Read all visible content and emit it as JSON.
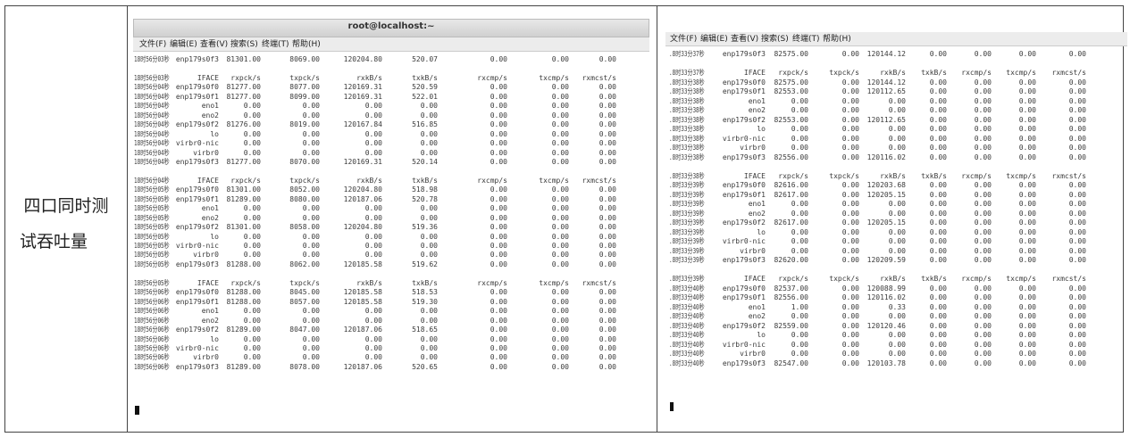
{
  "label": {
    "lines": [
      "四口同时测",
      "试吞吐量"
    ]
  },
  "terminals": [
    {
      "title": "root@localhost:~",
      "menu": [
        "文件(F)",
        "编辑(E)",
        "查看(V)",
        "搜索(S)",
        "终端(T)",
        "帮助(H)"
      ],
      "lines": [
        [
          "18时56分03秒",
          "enp179s0f3",
          "81301.00",
          "8069.00",
          "120204.80",
          "520.07",
          "0.00",
          "0.00",
          "0.00"
        ],
        null,
        [
          "18时56分03秒",
          "IFACE",
          "rxpck/s",
          "txpck/s",
          "rxkB/s",
          "txkB/s",
          "rxcmp/s",
          "txcmp/s",
          "rxmcst/s"
        ],
        [
          "18时56分04秒",
          "enp179s0f0",
          "81277.00",
          "8077.00",
          "120169.31",
          "520.59",
          "0.00",
          "0.00",
          "0.00"
        ],
        [
          "18时56分04秒",
          "enp179s0f1",
          "81277.00",
          "8099.00",
          "120169.31",
          "522.01",
          "0.00",
          "0.00",
          "0.00"
        ],
        [
          "18时56分04秒",
          "eno1",
          "0.00",
          "0.00",
          "0.00",
          "0.00",
          "0.00",
          "0.00",
          "0.00"
        ],
        [
          "18时56分04秒",
          "eno2",
          "0.00",
          "0.00",
          "0.00",
          "0.00",
          "0.00",
          "0.00",
          "0.00"
        ],
        [
          "18时56分04秒",
          "enp179s0f2",
          "81276.00",
          "8019.00",
          "120167.84",
          "516.85",
          "0.00",
          "0.00",
          "0.00"
        ],
        [
          "18时56分04秒",
          "lo",
          "0.00",
          "0.00",
          "0.00",
          "0.00",
          "0.00",
          "0.00",
          "0.00"
        ],
        [
          "18时56分04秒",
          "virbr0-nic",
          "0.00",
          "0.00",
          "0.00",
          "0.00",
          "0.00",
          "0.00",
          "0.00"
        ],
        [
          "18时56分04秒",
          "virbr0",
          "0.00",
          "0.00",
          "0.00",
          "0.00",
          "0.00",
          "0.00",
          "0.00"
        ],
        [
          "18时56分04秒",
          "enp179s0f3",
          "81277.00",
          "8070.00",
          "120169.31",
          "520.14",
          "0.00",
          "0.00",
          "0.00"
        ],
        null,
        [
          "18时56分04秒",
          "IFACE",
          "rxpck/s",
          "txpck/s",
          "rxkB/s",
          "txkB/s",
          "rxcmp/s",
          "txcmp/s",
          "rxmcst/s"
        ],
        [
          "18时56分05秒",
          "enp179s0f0",
          "81301.00",
          "8052.00",
          "120204.80",
          "518.98",
          "0.00",
          "0.00",
          "0.00"
        ],
        [
          "18时56分05秒",
          "enp179s0f1",
          "81289.00",
          "8080.00",
          "120187.06",
          "520.78",
          "0.00",
          "0.00",
          "0.00"
        ],
        [
          "18时56分05秒",
          "eno1",
          "0.00",
          "0.00",
          "0.00",
          "0.00",
          "0.00",
          "0.00",
          "0.00"
        ],
        [
          "18时56分05秒",
          "eno2",
          "0.00",
          "0.00",
          "0.00",
          "0.00",
          "0.00",
          "0.00",
          "0.00"
        ],
        [
          "18时56分05秒",
          "enp179s0f2",
          "81301.00",
          "8058.00",
          "120204.80",
          "519.36",
          "0.00",
          "0.00",
          "0.00"
        ],
        [
          "18时56分05秒",
          "lo",
          "0.00",
          "0.00",
          "0.00",
          "0.00",
          "0.00",
          "0.00",
          "0.00"
        ],
        [
          "18时56分05秒",
          "virbr0-nic",
          "0.00",
          "0.00",
          "0.00",
          "0.00",
          "0.00",
          "0.00",
          "0.00"
        ],
        [
          "18时56分05秒",
          "virbr0",
          "0.00",
          "0.00",
          "0.00",
          "0.00",
          "0.00",
          "0.00",
          "0.00"
        ],
        [
          "18时56分05秒",
          "enp179s0f3",
          "81288.00",
          "8062.00",
          "120185.58",
          "519.62",
          "0.00",
          "0.00",
          "0.00"
        ],
        null,
        [
          "18时56分05秒",
          "IFACE",
          "rxpck/s",
          "txpck/s",
          "rxkB/s",
          "txkB/s",
          "rxcmp/s",
          "txcmp/s",
          "rxmcst/s"
        ],
        [
          "18时56分06秒",
          "enp179s0f0",
          "81288.00",
          "8045.00",
          "120185.58",
          "518.53",
          "0.00",
          "0.00",
          "0.00"
        ],
        [
          "18时56分06秒",
          "enp179s0f1",
          "81288.00",
          "8057.00",
          "120185.58",
          "519.30",
          "0.00",
          "0.00",
          "0.00"
        ],
        [
          "18时56分06秒",
          "eno1",
          "0.00",
          "0.00",
          "0.00",
          "0.00",
          "0.00",
          "0.00",
          "0.00"
        ],
        [
          "18时56分06秒",
          "eno2",
          "0.00",
          "0.00",
          "0.00",
          "0.00",
          "0.00",
          "0.00",
          "0.00"
        ],
        [
          "18时56分06秒",
          "enp179s0f2",
          "81289.00",
          "8047.00",
          "120187.06",
          "518.65",
          "0.00",
          "0.00",
          "0.00"
        ],
        [
          "18时56分06秒",
          "lo",
          "0.00",
          "0.00",
          "0.00",
          "0.00",
          "0.00",
          "0.00",
          "0.00"
        ],
        [
          "18时56分06秒",
          "virbr0-nic",
          "0.00",
          "0.00",
          "0.00",
          "0.00",
          "0.00",
          "0.00",
          "0.00"
        ],
        [
          "18时56分06秒",
          "virbr0",
          "0.00",
          "0.00",
          "0.00",
          "0.00",
          "0.00",
          "0.00",
          "0.00"
        ],
        [
          "18时56分06秒",
          "enp179s0f3",
          "81289.00",
          "8078.00",
          "120187.06",
          "520.65",
          "0.00",
          "0.00",
          "0.00"
        ]
      ]
    },
    {
      "menu": [
        "文件(F)",
        "编辑(E)",
        "查看(V)",
        "搜索(S)",
        "终端(T)",
        "帮助(H)"
      ],
      "lines": [
        [
          ".8时33分37秒",
          "enp179s0f3",
          "82575.00",
          "0.00",
          "120144.12",
          "0.00",
          "0.00",
          "0.00",
          "0.00"
        ],
        null,
        [
          ".8时33分37秒",
          "IFACE",
          "rxpck/s",
          "txpck/s",
          "rxkB/s",
          "txkB/s",
          "rxcmp/s",
          "txcmp/s",
          "rxmcst/s"
        ],
        [
          ".8时33分38秒",
          "enp179s0f0",
          "82575.00",
          "0.00",
          "120144.12",
          "0.00",
          "0.00",
          "0.00",
          "0.00"
        ],
        [
          ".8时33分38秒",
          "enp179s0f1",
          "82553.00",
          "0.00",
          "120112.65",
          "0.00",
          "0.00",
          "0.00",
          "0.00"
        ],
        [
          ".8时33分38秒",
          "eno1",
          "0.00",
          "0.00",
          "0.00",
          "0.00",
          "0.00",
          "0.00",
          "0.00"
        ],
        [
          ".8时33分38秒",
          "eno2",
          "0.00",
          "0.00",
          "0.00",
          "0.00",
          "0.00",
          "0.00",
          "0.00"
        ],
        [
          ".8时33分38秒",
          "enp179s0f2",
          "82553.00",
          "0.00",
          "120112.65",
          "0.00",
          "0.00",
          "0.00",
          "0.00"
        ],
        [
          ".8时33分38秒",
          "lo",
          "0.00",
          "0.00",
          "0.00",
          "0.00",
          "0.00",
          "0.00",
          "0.00"
        ],
        [
          ".8时33分38秒",
          "virbr0-nic",
          "0.00",
          "0.00",
          "0.00",
          "0.00",
          "0.00",
          "0.00",
          "0.00"
        ],
        [
          ".8时33分38秒",
          "virbr0",
          "0.00",
          "0.00",
          "0.00",
          "0.00",
          "0.00",
          "0.00",
          "0.00"
        ],
        [
          ".8时33分38秒",
          "enp179s0f3",
          "82556.00",
          "0.00",
          "120116.02",
          "0.00",
          "0.00",
          "0.00",
          "0.00"
        ],
        null,
        [
          ".8时33分38秒",
          "IFACE",
          "rxpck/s",
          "txpck/s",
          "rxkB/s",
          "txkB/s",
          "rxcmp/s",
          "txcmp/s",
          "rxmcst/s"
        ],
        [
          ".8时33分39秒",
          "enp179s0f0",
          "82616.00",
          "0.00",
          "120203.68",
          "0.00",
          "0.00",
          "0.00",
          "0.00"
        ],
        [
          ".8时33分39秒",
          "enp179s0f1",
          "82617.00",
          "0.00",
          "120205.15",
          "0.00",
          "0.00",
          "0.00",
          "0.00"
        ],
        [
          ".8时33分39秒",
          "eno1",
          "0.00",
          "0.00",
          "0.00",
          "0.00",
          "0.00",
          "0.00",
          "0.00"
        ],
        [
          ".8时33分39秒",
          "eno2",
          "0.00",
          "0.00",
          "0.00",
          "0.00",
          "0.00",
          "0.00",
          "0.00"
        ],
        [
          ".8时33分39秒",
          "enp179s0f2",
          "82617.00",
          "0.00",
          "120205.15",
          "0.00",
          "0.00",
          "0.00",
          "0.00"
        ],
        [
          ".8时33分39秒",
          "lo",
          "0.00",
          "0.00",
          "0.00",
          "0.00",
          "0.00",
          "0.00",
          "0.00"
        ],
        [
          ".8时33分39秒",
          "virbr0-nic",
          "0.00",
          "0.00",
          "0.00",
          "0.00",
          "0.00",
          "0.00",
          "0.00"
        ],
        [
          ".8时33分39秒",
          "virbr0",
          "0.00",
          "0.00",
          "0.00",
          "0.00",
          "0.00",
          "0.00",
          "0.00"
        ],
        [
          ".8时33分39秒",
          "enp179s0f3",
          "82620.00",
          "0.00",
          "120209.59",
          "0.00",
          "0.00",
          "0.00",
          "0.00"
        ],
        null,
        [
          ".8时33分39秒",
          "IFACE",
          "rxpck/s",
          "txpck/s",
          "rxkB/s",
          "txkB/s",
          "rxcmp/s",
          "txcmp/s",
          "rxmcst/s"
        ],
        [
          ".8时33分40秒",
          "enp179s0f0",
          "82537.00",
          "0.00",
          "120088.99",
          "0.00",
          "0.00",
          "0.00",
          "0.00"
        ],
        [
          ".8时33分40秒",
          "enp179s0f1",
          "82556.00",
          "0.00",
          "120116.02",
          "0.00",
          "0.00",
          "0.00",
          "0.00"
        ],
        [
          ".8时33分40秒",
          "eno1",
          "1.00",
          "0.00",
          "0.33",
          "0.00",
          "0.00",
          "0.00",
          "0.00"
        ],
        [
          ".8时33分40秒",
          "eno2",
          "0.00",
          "0.00",
          "0.00",
          "0.00",
          "0.00",
          "0.00",
          "0.00"
        ],
        [
          ".8时33分40秒",
          "enp179s0f2",
          "82559.00",
          "0.00",
          "120120.46",
          "0.00",
          "0.00",
          "0.00",
          "0.00"
        ],
        [
          ".8时33分40秒",
          "lo",
          "0.00",
          "0.00",
          "0.00",
          "0.00",
          "0.00",
          "0.00",
          "0.00"
        ],
        [
          ".8时33分40秒",
          "virbr0-nic",
          "0.00",
          "0.00",
          "0.00",
          "0.00",
          "0.00",
          "0.00",
          "0.00"
        ],
        [
          ".8时33分40秒",
          "virbr0",
          "0.00",
          "0.00",
          "0.00",
          "0.00",
          "0.00",
          "0.00",
          "0.00"
        ],
        [
          ".8时33分40秒",
          "enp179s0f3",
          "82547.00",
          "0.00",
          "120103.78",
          "0.00",
          "0.00",
          "0.00",
          "0.00"
        ]
      ]
    }
  ]
}
